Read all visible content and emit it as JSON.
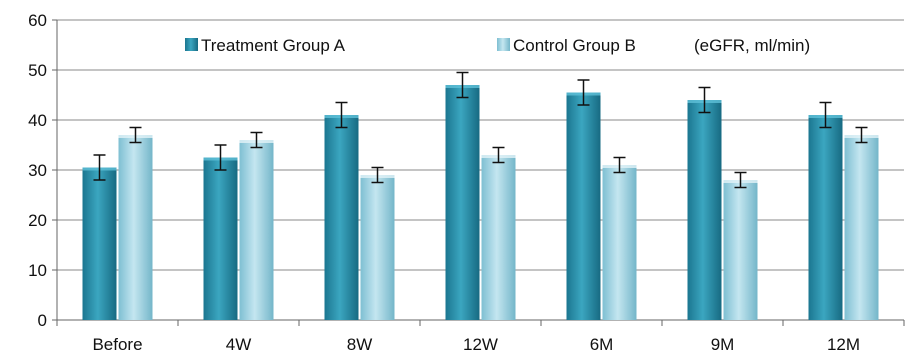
{
  "chart_data": {
    "type": "bar",
    "title": "",
    "xlabel": "",
    "ylabel": "",
    "categories": [
      "Before",
      "4W",
      "8W",
      "12W",
      "6M",
      "9M",
      "12M"
    ],
    "series": [
      {
        "name": "Treatment Group A",
        "values": [
          30.5,
          32.5,
          41,
          47,
          45.5,
          44,
          41
        ],
        "errors": [
          2.5,
          2.5,
          2.5,
          2.5,
          2.5,
          2.5,
          2.5
        ],
        "color": "#2a8fa8"
      },
      {
        "name": "Control Group B",
        "values": [
          37,
          36,
          29,
          33,
          31,
          28,
          37
        ],
        "errors": [
          1.5,
          1.5,
          1.5,
          1.5,
          1.5,
          1.5,
          1.5
        ],
        "color": "#9fd3e3"
      }
    ],
    "unit_note": "(eGFR, ml/min)",
    "ylim": [
      0,
      60
    ],
    "yticks": [
      0,
      10,
      20,
      30,
      40,
      50,
      60
    ],
    "grid": true,
    "legend_position": "top-center"
  }
}
